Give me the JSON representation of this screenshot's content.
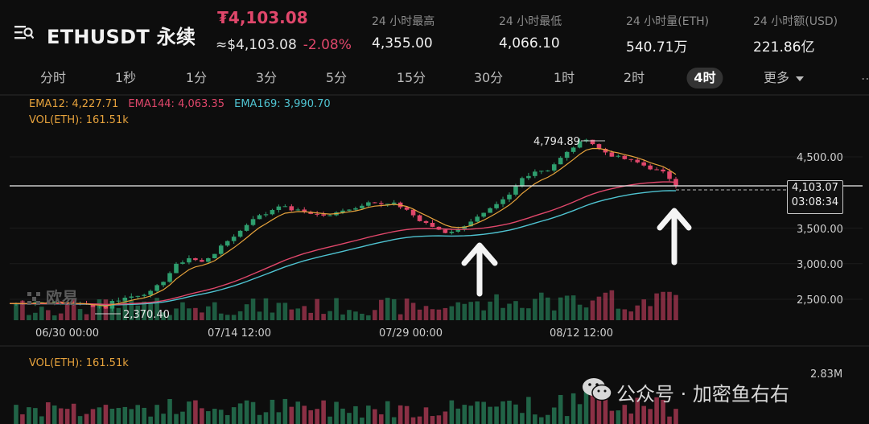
{
  "header": {
    "symbol": "ETHUSDT 永续",
    "last_price": "₮4,103.08",
    "approx_price": "≈$4,103.08",
    "change": "-2.08%",
    "stats": [
      {
        "label": "24 小时最高",
        "value": "4,355.00"
      },
      {
        "label": "24 小时最低",
        "value": "4,066.10"
      },
      {
        "label": "24 小时量(ETH)",
        "value": "540.71万"
      },
      {
        "label": "24 小时额(USD)",
        "value": "221.86亿"
      }
    ]
  },
  "tabs": [
    "分时",
    "1秒",
    "1分",
    "3分",
    "5分",
    "15分",
    "30分",
    "1时",
    "2时",
    "4时",
    "更多"
  ],
  "active_tab": "4时",
  "indicators": {
    "ema12": "EMA12: 4,227.71",
    "ema144": "EMA144: 4,063.35",
    "ema169": "EMA169: 3,990.70",
    "vol": "VOL(ETH): 161.51k",
    "vol_panel": "VOL(ETH): 161.51k",
    "vol_max": "2.83M"
  },
  "price_tag": {
    "price": "4,103.07",
    "countdown": "03:08:34"
  },
  "watermark": {
    "logo": "欧易",
    "account": "公众号 · 加密鱼右右"
  },
  "colors": {
    "up": "#2e9e6e",
    "down": "#e0476b",
    "ema12": "#e6a23c",
    "ema144": "#e0476b",
    "ema169": "#4fc3d1"
  },
  "chart_data": {
    "type": "candlestick",
    "x_ticks": [
      "06/30 00:00",
      "07/14 12:00",
      "07/29 00:00",
      "08/12 12:00"
    ],
    "y_ticks": [
      "4,500.00",
      "3,500.00",
      "3,000.00",
      "2,500.00"
    ],
    "price_axis": [
      2500,
      3000,
      3500,
      4500
    ],
    "annotations": {
      "high": "4,794.89",
      "low": "2,370.40",
      "current_price": "4,103.07"
    },
    "close_path": [
      [
        0,
        2440
      ],
      [
        4,
        2460
      ],
      [
        8,
        2450
      ],
      [
        12,
        2420
      ],
      [
        14,
        2400
      ],
      [
        15,
        2380
      ],
      [
        16,
        2470
      ],
      [
        18,
        2520
      ],
      [
        20,
        2560
      ],
      [
        22,
        2600
      ],
      [
        24,
        2760
      ],
      [
        26,
        2980
      ],
      [
        28,
        3080
      ],
      [
        30,
        3020
      ],
      [
        32,
        3150
      ],
      [
        34,
        3320
      ],
      [
        36,
        3460
      ],
      [
        38,
        3640
      ],
      [
        40,
        3700
      ],
      [
        42,
        3820
      ],
      [
        44,
        3760
      ],
      [
        46,
        3730
      ],
      [
        48,
        3690
      ],
      [
        50,
        3670
      ],
      [
        52,
        3760
      ],
      [
        54,
        3780
      ],
      [
        56,
        3880
      ],
      [
        58,
        3830
      ],
      [
        60,
        3840
      ],
      [
        62,
        3760
      ],
      [
        64,
        3600
      ],
      [
        66,
        3520
      ],
      [
        68,
        3440
      ],
      [
        70,
        3480
      ],
      [
        72,
        3600
      ],
      [
        74,
        3700
      ],
      [
        76,
        3820
      ],
      [
        78,
        3960
      ],
      [
        80,
        4200
      ],
      [
        82,
        4300
      ],
      [
        84,
        4320
      ],
      [
        86,
        4480
      ],
      [
        88,
        4640
      ],
      [
        90,
        4760
      ],
      [
        92,
        4610
      ],
      [
        94,
        4520
      ],
      [
        96,
        4470
      ],
      [
        98,
        4420
      ],
      [
        100,
        4340
      ],
      [
        102,
        4280
      ],
      [
        104,
        4120
      ]
    ],
    "ema12_last": 4227.71,
    "ema144_last": 4063.35,
    "ema169_last": 3990.7,
    "volume_max": "2.83M"
  }
}
